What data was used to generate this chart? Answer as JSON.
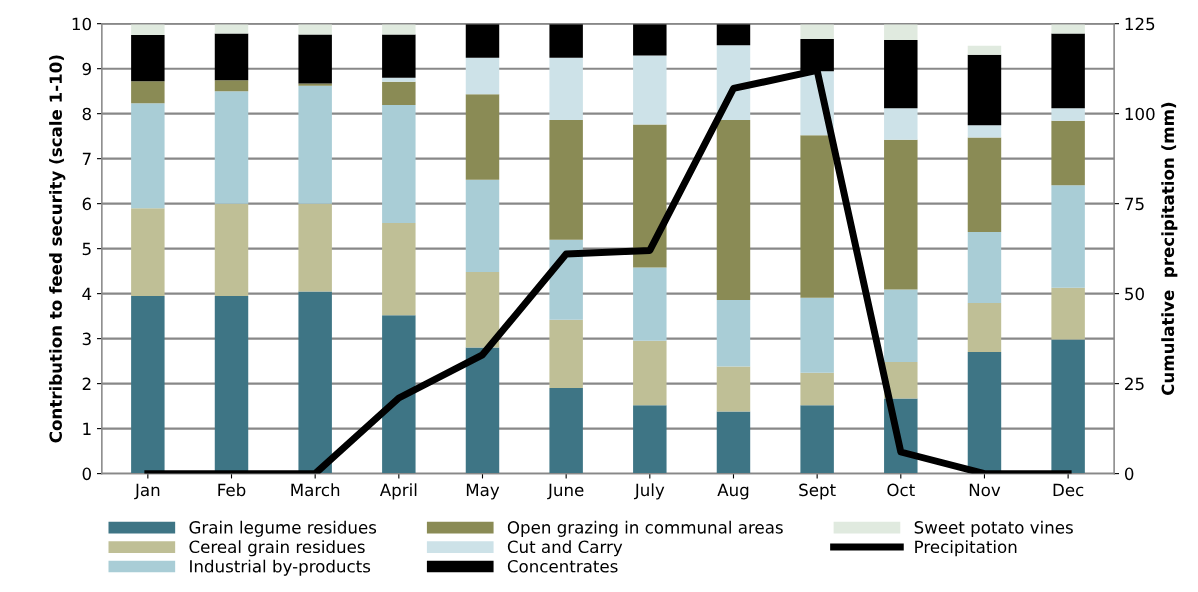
{
  "chart_data": {
    "type": "bar",
    "stacked": true,
    "categories": [
      "Jan",
      "Feb",
      "March",
      "April",
      "May",
      "June",
      "July",
      "Aug",
      "Sept",
      "Oct",
      "Nov",
      "Dec"
    ],
    "ylabel": "Contribution to feed security (scale 1-10)",
    "y2label": "Cumulative  precipitation (mm)",
    "ylim": [
      0,
      10
    ],
    "yticks": [
      0,
      1,
      2,
      3,
      4,
      5,
      6,
      7,
      8,
      9,
      10
    ],
    "y2lim": [
      0,
      125
    ],
    "y2ticks": [
      0,
      25,
      50,
      75,
      100,
      125
    ],
    "grid": "y",
    "legend": "bottom",
    "series": [
      {
        "name": "Grain legume residues",
        "color": "#3e7585",
        "values": [
          3.95,
          3.95,
          4.05,
          3.52,
          2.8,
          1.9,
          1.52,
          1.38,
          1.52,
          1.67,
          2.7,
          2.98
        ]
      },
      {
        "name": "Cereal grain residues",
        "color": "#bfbf96",
        "values": [
          1.95,
          2.05,
          1.95,
          2.05,
          1.68,
          1.52,
          1.43,
          1.0,
          0.72,
          0.81,
          1.09,
          1.15
        ]
      },
      {
        "name": "Industrial by-products",
        "color": "#a9cdd6",
        "values": [
          2.33,
          2.5,
          2.62,
          2.62,
          2.05,
          1.78,
          1.63,
          1.48,
          1.67,
          1.61,
          1.58,
          2.28
        ]
      },
      {
        "name": "Open grazing in communal areas",
        "color": "#8a8b55",
        "values": [
          0.49,
          0.24,
          0.05,
          0.52,
          1.9,
          2.66,
          3.18,
          4.0,
          3.61,
          3.33,
          2.1,
          1.43
        ]
      },
      {
        "name": "Cut and Carry",
        "color": "#cde2e8",
        "values": [
          0,
          0,
          0,
          0.09,
          0.81,
          1.38,
          1.53,
          1.66,
          1.42,
          0.7,
          0.27,
          0.28
        ]
      },
      {
        "name": "Concentrates",
        "color": "#000000",
        "values": [
          1.03,
          1.04,
          1.09,
          0.96,
          0.76,
          0.76,
          0.71,
          0.48,
          0.72,
          1.52,
          1.57,
          1.66
        ]
      },
      {
        "name": "Sweet potato vines",
        "color": "#e0eadf",
        "values": [
          0.25,
          0.22,
          0.24,
          0.24,
          0,
          0,
          0,
          0,
          0.34,
          0.36,
          0.2,
          0.22
        ]
      },
      {
        "name": "Precipitation",
        "type": "line",
        "axis": "y2",
        "color": "#000000",
        "marker": "none",
        "line_style": "solid",
        "values": [
          0,
          0,
          0,
          21,
          33,
          61,
          62,
          107,
          112,
          6,
          0,
          0
        ]
      }
    ]
  }
}
